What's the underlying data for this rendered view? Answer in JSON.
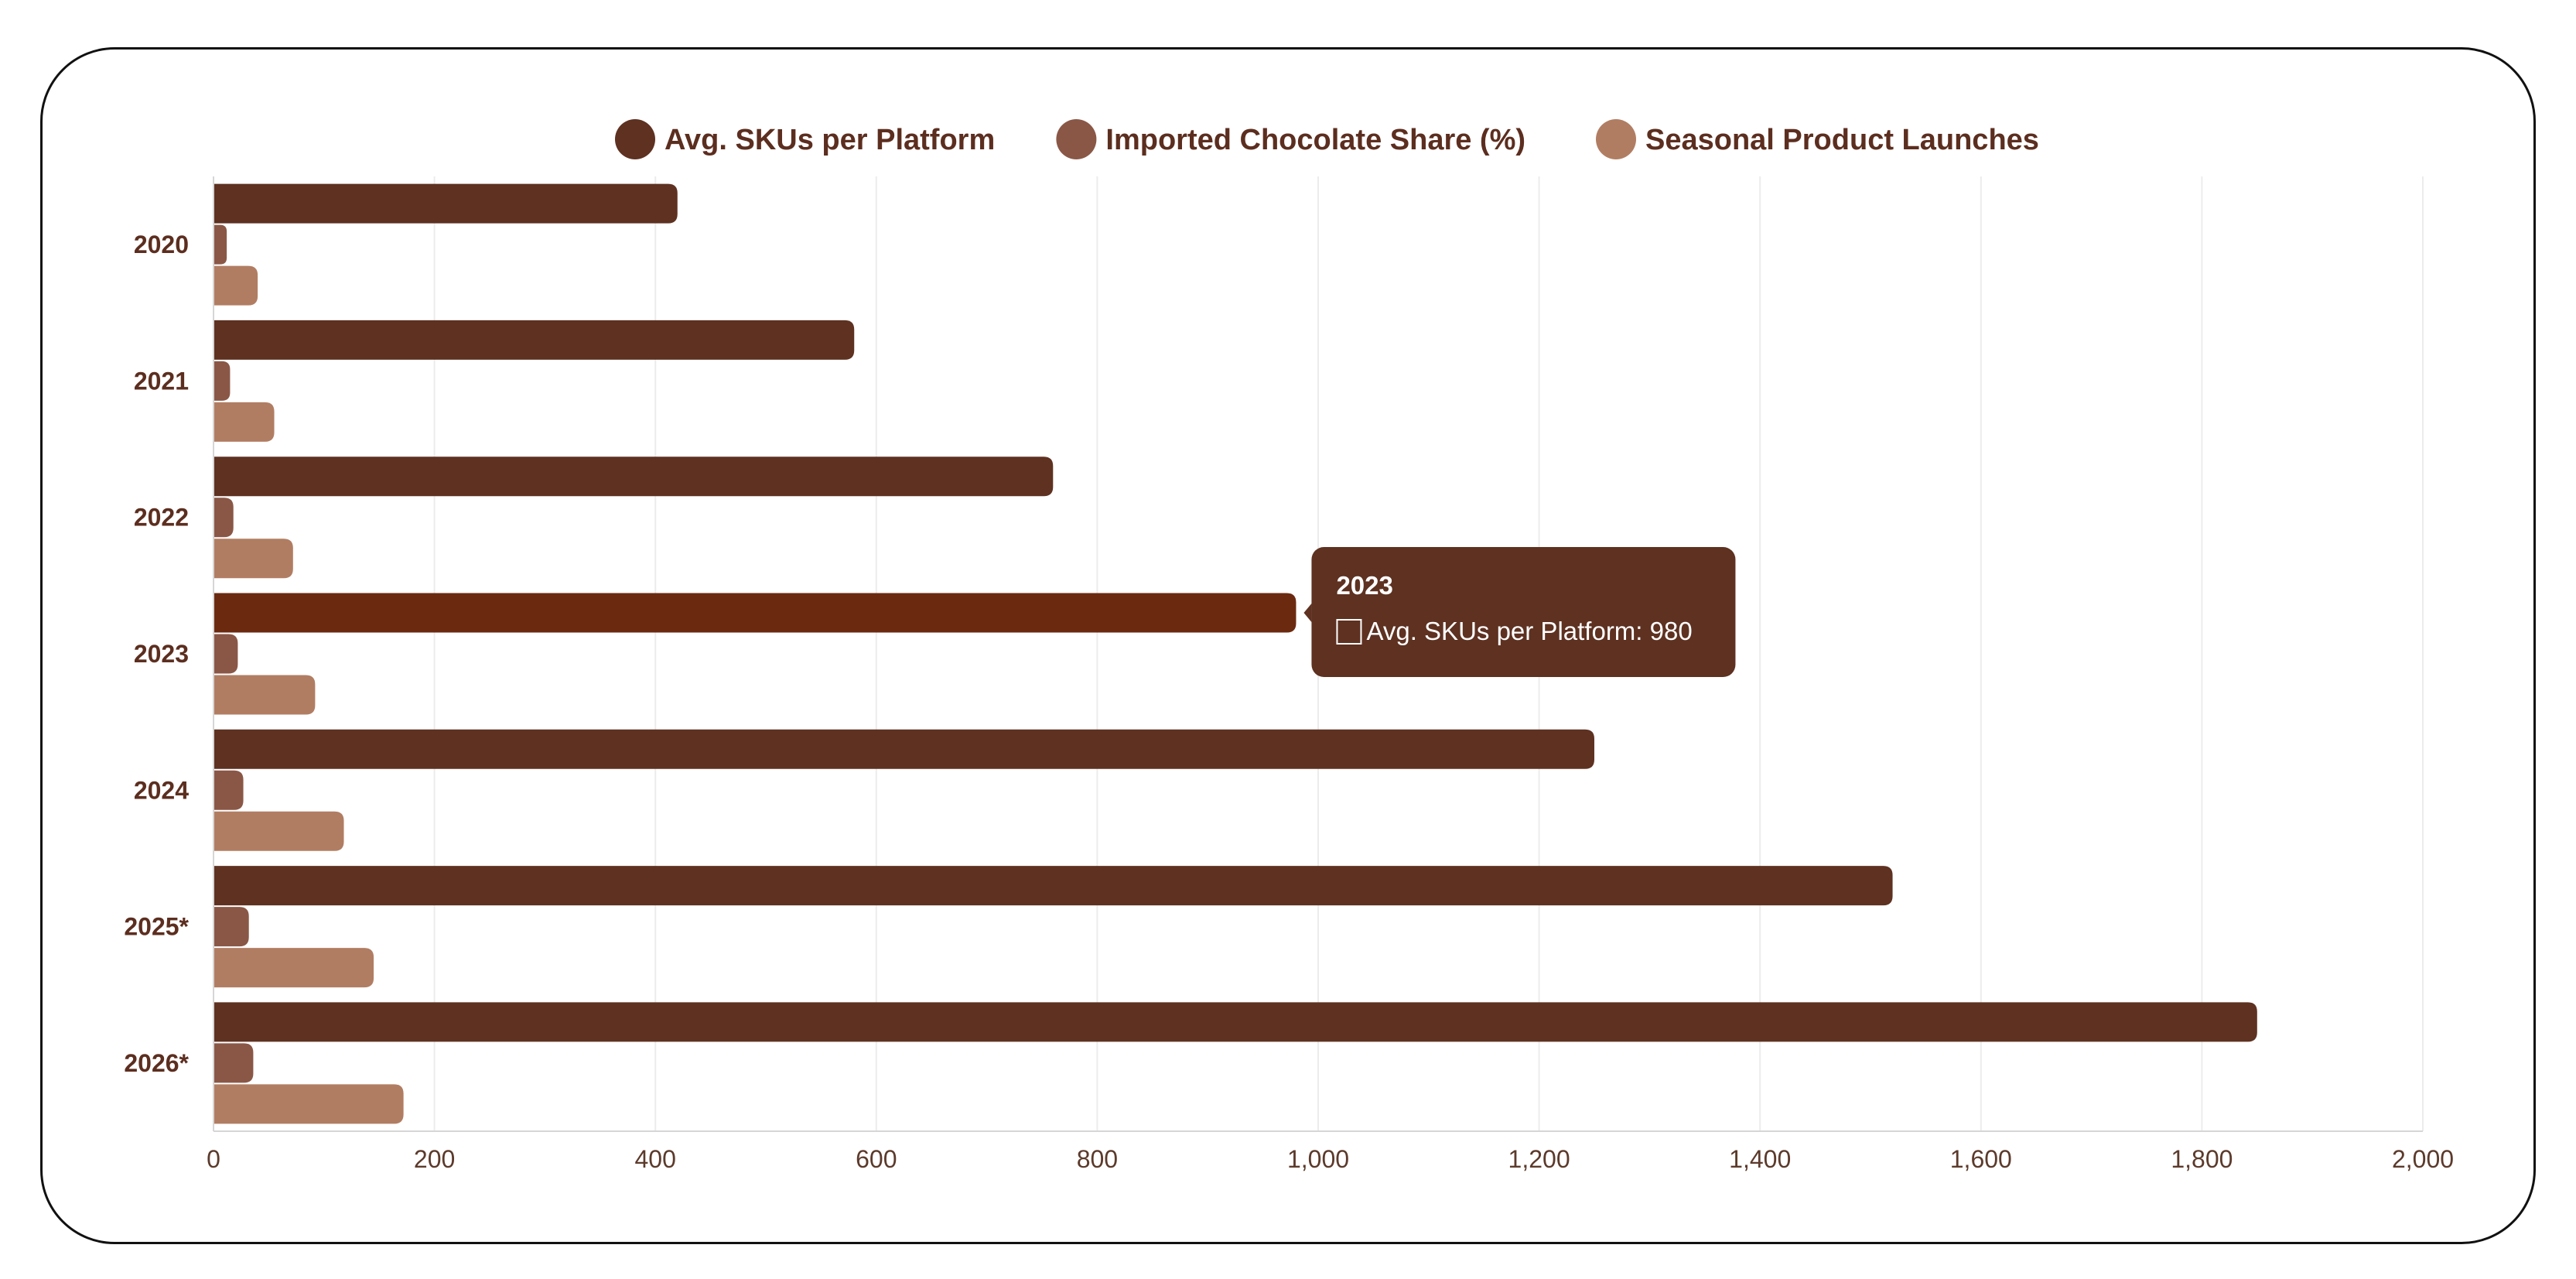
{
  "chart_data": {
    "type": "bar",
    "orientation": "horizontal",
    "categories": [
      "2020",
      "2021",
      "2022",
      "2023",
      "2024",
      "2025*",
      "2026*"
    ],
    "series": [
      {
        "name": "Avg. SKUs per Platform",
        "values": [
          420,
          580,
          760,
          980,
          1250,
          1520,
          1850
        ],
        "color": "#5e3121"
      },
      {
        "name": "Imported Chocolate Share (%)",
        "values": [
          12,
          15,
          18,
          22,
          27,
          32,
          36
        ],
        "color": "#8a5746"
      },
      {
        "name": "Seasonal Product Launches",
        "values": [
          40,
          55,
          72,
          92,
          118,
          145,
          172
        ],
        "color": "#b17d62"
      }
    ],
    "xlim": [
      0,
      2000
    ],
    "xticks": [
      0,
      200,
      400,
      600,
      800,
      1000,
      1200,
      1400,
      1600,
      1800,
      2000
    ],
    "xtick_labels": [
      "0",
      "200",
      "400",
      "600",
      "800",
      "1,000",
      "1,200",
      "1,400",
      "1,600",
      "1,800",
      "2,000"
    ],
    "grid": true,
    "legend_position": "top-center",
    "highlight": {
      "category_index": 3,
      "series_index": 0,
      "color": "#6b2a10"
    },
    "tooltip": {
      "title": "2023",
      "text": "Avg. SKUs per Platform: 980",
      "background": "#5e3121"
    }
  }
}
